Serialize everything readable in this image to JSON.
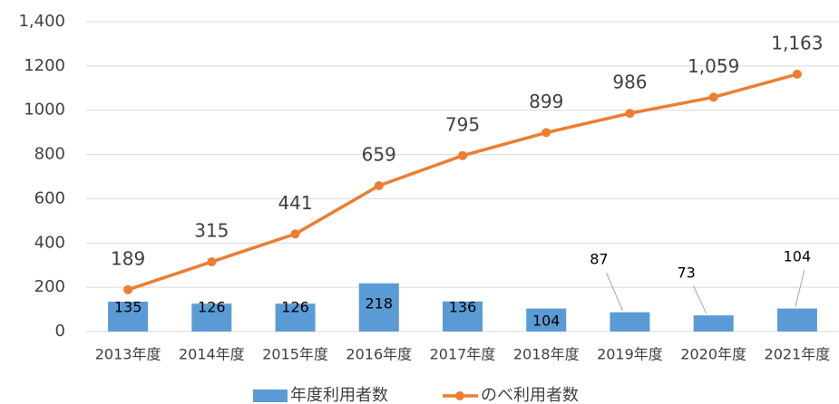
{
  "chart_data": {
    "type": "bar+line",
    "categories": [
      "2013年度",
      "2014年度",
      "2015年度",
      "2016年度",
      "2017年度",
      "2018年度",
      "2019年度",
      "2020年度",
      "2021年度"
    ],
    "series": [
      {
        "name": "年度利用者数",
        "type": "bar",
        "color": "#5b9bd5",
        "values": [
          135,
          126,
          126,
          218,
          136,
          104,
          87,
          73,
          104
        ]
      },
      {
        "name": "のべ利用者数",
        "type": "line",
        "color": "#ed7d31",
        "values": [
          189,
          315,
          441,
          659,
          795,
          899,
          986,
          1059,
          1163
        ],
        "value_labels": [
          "189",
          "315",
          "441",
          "659",
          "795",
          "899",
          "986",
          "1,059",
          "1,163"
        ]
      }
    ],
    "ylim": [
      0,
      1400
    ],
    "yticks": [
      0,
      200,
      400,
      600,
      800,
      1000,
      1200,
      {
        "value": 1400,
        "label": "1,400"
      }
    ],
    "grid": true,
    "legend": "bottom"
  }
}
